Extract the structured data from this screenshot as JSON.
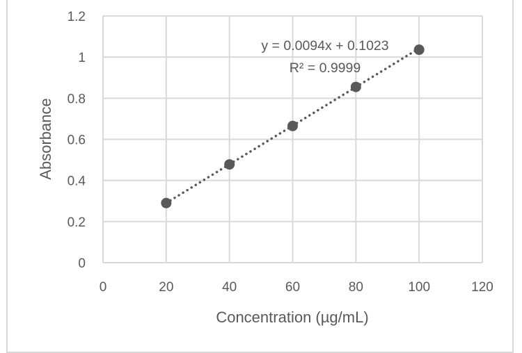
{
  "chart_data": {
    "type": "scatter",
    "title": "",
    "xlabel": "Concentration (µg/mL)",
    "ylabel": "Absorbance",
    "xlim": [
      0,
      120
    ],
    "ylim": [
      0,
      1.2
    ],
    "x_ticks": [
      "0",
      "20",
      "40",
      "60",
      "80",
      "100",
      "120"
    ],
    "y_ticks": [
      "0",
      "0.2",
      "0.4",
      "0.6",
      "0.8",
      "1",
      "1.2"
    ],
    "grid": true,
    "legend": "none",
    "series": [
      {
        "name": "Absorbance",
        "x": [
          20,
          40,
          60,
          80,
          100
        ],
        "y": [
          0.29,
          0.478,
          0.665,
          0.855,
          1.036
        ],
        "marker": "circle",
        "color": "#595959"
      }
    ],
    "trendline": {
      "type": "linear",
      "style": "dotted",
      "color": "#595959",
      "slope": 0.0094,
      "intercept": 0.1023,
      "x_range": [
        20,
        100
      ],
      "equation_label": "y = 0.0094x + 0.1023",
      "r_squared_label": "R² = 0.9999"
    },
    "annotations": [
      "y = 0.0094x + 0.1023",
      "R² = 0.9999"
    ]
  },
  "colors": {
    "gridline": "#d9d9d9",
    "text": "#595959",
    "marker": "#595959",
    "border": "#d9d9d9"
  }
}
